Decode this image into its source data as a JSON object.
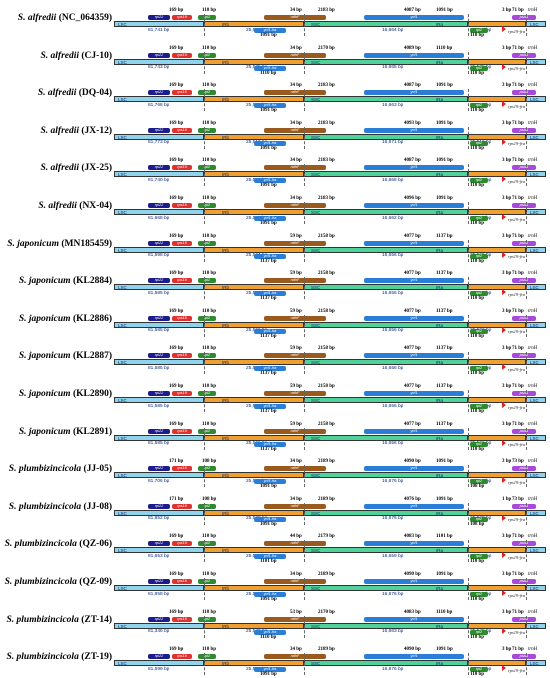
{
  "colors": {
    "LSC": "#8fd3ec",
    "IRb": "#f0a030",
    "SSC": "#4fd39a",
    "IRa": "#f0a030",
    "rpl22": "#1c1c8c",
    "rps19": "#e03030",
    "rpl2": "#2e8a2e",
    "ndhF": "#9a5a1e",
    "ycf1": "#2a7ed8",
    "psbA": "#a84ad8"
  },
  "labels": {
    "lsc": "LSC",
    "irb": "IRb",
    "ssc": "SSC",
    "ira": "IRa",
    "lsc2": "LSC",
    "rpl22": "rpl22",
    "rps19": "rps19",
    "rpl2": "rpl2",
    "ndhF": "ndhF",
    "ycf1": "ycf1",
    "psbA": "psbA",
    "ycf1fra": "ycf1-fra",
    "trnH": "trnH",
    "rps19fra": "rps19-fra"
  },
  "rows": [
    {
      "genus": "S. alfredii",
      "code": "(NC_064359)",
      "lsc": "81,741 bp",
      "irb": "25,516 bp",
      "ssc": "16,664 bp",
      "ira": "25,516 bp",
      "a1": "169 bp",
      "a2": "110 bp",
      "a3": "34 bp",
      "a4": "2183 bp",
      "a5": "4087 bp",
      "a6": "1091 bp",
      "a7": "3 bp",
      "a8": "71 bp",
      "b1": "1091 bp",
      "b2": "110 bp"
    },
    {
      "genus": "S. alfredii",
      "code": "(CJ-10)",
      "lsc": "81,743 bp",
      "irb": "25,535 bp",
      "ssc": "16,665 bp",
      "ira": "25,535 bp",
      "a1": "169 bp",
      "a2": "110 bp",
      "a3": "34 bp",
      "a4": "2170 bp",
      "a5": "4089 bp",
      "a6": "1110 bp",
      "a7": "3 bp",
      "a8": "71 bp",
      "b1": "1110 bp",
      "b2": "110 bp"
    },
    {
      "genus": "S. alfredii",
      "code": "(DQ-04)",
      "lsc": "81,768 bp",
      "irb": "25,516 bp",
      "ssc": "16,663 bp",
      "ira": "25,516 bp",
      "a1": "169 bp",
      "a2": "110 bp",
      "a3": "34 bp",
      "a4": "2183 bp",
      "a5": "4087 bp",
      "a6": "1091 bp",
      "a7": "3 bp",
      "a8": "71 bp",
      "b1": "1091 bp",
      "b2": "110 bp"
    },
    {
      "genus": "S. alfredii",
      "code": "(JX-12)",
      "lsc": "81,773 bp",
      "irb": "25,516 bp",
      "ssc": "16,671 bp",
      "ira": "25,516 bp",
      "a1": "169 bp",
      "a2": "110 bp",
      "a3": "34 bp",
      "a4": "2183 bp",
      "a5": "4093 bp",
      "a6": "1091 bp",
      "a7": "3 bp",
      "a8": "71 bp",
      "b1": "1091 bp",
      "b2": "110 bp"
    },
    {
      "genus": "S. alfredii",
      "code": "(JX-25)",
      "lsc": "81,740 bp",
      "irb": "25,516 bp",
      "ssc": "16,666 bp",
      "ira": "25,516 bp",
      "a1": "169 bp",
      "a2": "110 bp",
      "a3": "34 bp",
      "a4": "2183 bp",
      "a5": "4087 bp",
      "a6": "1091 bp",
      "a7": "3 bp",
      "a8": "71 bp",
      "b1": "1091 bp",
      "b2": "110 bp"
    },
    {
      "genus": "S. alfredii",
      "code": "(NX-04)",
      "lsc": "81,668 bp",
      "irb": "25,521 bp",
      "ssc": "16,662 bp",
      "ira": "25,521 bp",
      "a1": "169 bp",
      "a2": "110 bp",
      "a3": "34 bp",
      "a4": "2183 bp",
      "a5": "4096 bp",
      "a6": "1091 bp",
      "a7": "3 bp",
      "a8": "71 bp",
      "b1": "1091 bp",
      "b2": "110 bp"
    },
    {
      "genus": "S. japonicum",
      "code": "(MN185459)",
      "lsc": "81,598 bp",
      "irb": "25,564 bp",
      "ssc": "16,656 bp",
      "ira": "25,565 bp",
      "a1": "169 bp",
      "a2": "110 bp",
      "a3": "59 bp",
      "a4": "2158 bp",
      "a5": "4077 bp",
      "a6": "1137 bp",
      "a7": "3 bp",
      "a8": "71 bp",
      "b1": "1137 bp",
      "b2": "110 bp"
    },
    {
      "genus": "S. japonicum",
      "code": "(KL2884)",
      "lsc": "81,585 bp",
      "irb": "25,566 bp",
      "ssc": "16,656 bp",
      "ira": "25,566 bp",
      "a1": "169 bp",
      "a2": "110 bp",
      "a3": "59 bp",
      "a4": "2158 bp",
      "a5": "4077 bp",
      "a6": "1137 bp",
      "a7": "3 bp",
      "a8": "71 bp",
      "b1": "1137 bp",
      "b2": "110 bp"
    },
    {
      "genus": "S. japonicum",
      "code": "(KL2886)",
      "lsc": "81,585 bp",
      "irb": "25,566 bp",
      "ssc": "16,656 bp",
      "ira": "25,566 bp",
      "a1": "169 bp",
      "a2": "110 bp",
      "a3": "59 bp",
      "a4": "2158 bp",
      "a5": "4077 bp",
      "a6": "1137 bp",
      "a7": "3 bp",
      "a8": "71 bp",
      "b1": "1137 bp",
      "b2": "110 bp"
    },
    {
      "genus": "S. japonicum",
      "code": "(KL2887)",
      "lsc": "81,585 bp",
      "irb": "25,566 bp",
      "ssc": "16,656 bp",
      "ira": "25,566 bp",
      "a1": "169 bp",
      "a2": "110 bp",
      "a3": "59 bp",
      "a4": "2158 bp",
      "a5": "4077 bp",
      "a6": "1137 bp",
      "a7": "3 bp",
      "a8": "71 bp",
      "b1": "1137 bp",
      "b2": "110 bp"
    },
    {
      "genus": "S. japonicum",
      "code": "(KL2890)",
      "lsc": "81,585 bp",
      "irb": "25,566 bp",
      "ssc": "16,656 bp",
      "ira": "25,566 bp",
      "a1": "169 bp",
      "a2": "110 bp",
      "a3": "59 bp",
      "a4": "2158 bp",
      "a5": "4077 bp",
      "a6": "1137 bp",
      "a7": "3 bp",
      "a8": "71 bp",
      "b1": "1137 bp",
      "b2": "110 bp"
    },
    {
      "genus": "S. japonicum",
      "code": "(KL2891)",
      "lsc": "81,585 bp",
      "irb": "25,566 bp",
      "ssc": "16,656 bp",
      "ira": "25,566 bp",
      "a1": "169 bp",
      "a2": "110 bp",
      "a3": "59 bp",
      "a4": "2158 bp",
      "a5": "4077 bp",
      "a6": "1137 bp",
      "a7": "3 bp",
      "a8": "71 bp",
      "b1": "1137 bp",
      "b2": "110 bp"
    },
    {
      "genus": "S. plumbizincicola",
      "code": "(JJ-05)",
      "lsc": "81,706 bp",
      "irb": "25,528 bp",
      "ssc": "16,676 bp",
      "ira": "25,528 bp",
      "a1": "171 bp",
      "a2": "108 bp",
      "a3": "34 bp",
      "a4": "2189 bp",
      "a5": "4090 bp",
      "a6": "1091 bp",
      "a7": "3 bp",
      "a8": "73 bp",
      "b1": "1091 bp",
      "b2": "108 bp"
    },
    {
      "genus": "S. plumbizincicola",
      "code": "(JJ-08)",
      "lsc": "81,852 bp",
      "irb": "25,528 bp",
      "ssc": "16,676 bp",
      "ira": "25,528 bp",
      "a1": "171 bp",
      "a2": "108 bp",
      "a3": "34 bp",
      "a4": "2189 bp",
      "a5": "4076 bp",
      "a6": "1091 bp",
      "a7": "1 bp",
      "a8": "73 bp",
      "b1": "1091 bp",
      "b2": "108 bp"
    },
    {
      "genus": "S. plumbizincicola",
      "code": "(QZ-06)",
      "lsc": "81,653 bp",
      "irb": "25,540 bp",
      "ssc": "16,659 bp",
      "ira": "25,540 bp",
      "a1": "169 bp",
      "a2": "110 bp",
      "a3": "44 bp",
      "a4": "2179 bp",
      "a5": "4083 bp",
      "a6": "1101 bp",
      "a7": "3 bp",
      "a8": "71 bp",
      "b1": "1101 bp",
      "b2": "110 bp"
    },
    {
      "genus": "S. plumbizincicola",
      "code": "(QZ-09)",
      "lsc": "81,858 bp",
      "irb": "25,530 bp",
      "ssc": "16,676 bp",
      "ira": "25,530 bp",
      "a1": "169 bp",
      "a2": "110 bp",
      "a3": "34 bp",
      "a4": "2189 bp",
      "a5": "4090 bp",
      "a6": "1091 bp",
      "a7": "3 bp",
      "a8": "71 bp",
      "b1": "1091 bp",
      "b2": "110 bp"
    },
    {
      "genus": "S. plumbizincicola",
      "code": "(ZT-14)",
      "lsc": "81,346 bp",
      "irb": "25,549 bp",
      "ssc": "16,663 bp",
      "ira": "25,549 bp",
      "a1": "169 bp",
      "a2": "110 bp",
      "a3": "53 bp",
      "a4": "2170 bp",
      "a5": "4083 bp",
      "a6": "1110 bp",
      "a7": "3 bp",
      "a8": "71 bp",
      "b1": "1110 bp",
      "b2": "110 bp"
    },
    {
      "genus": "S. plumbizincicola",
      "code": "(ZT-19)",
      "lsc": "81,599 bp",
      "irb": "25,556 bp",
      "ssc": "16,676 bp",
      "ira": "25,556 bp",
      "a1": "169 bp",
      "a2": "110 bp",
      "a3": "34 bp",
      "a4": "2189 bp",
      "a5": "4090 bp",
      "a6": "1091 bp",
      "a7": "3 bp",
      "a8": "71 bp",
      "b1": "1091 bp",
      "b2": "110 bp"
    }
  ]
}
